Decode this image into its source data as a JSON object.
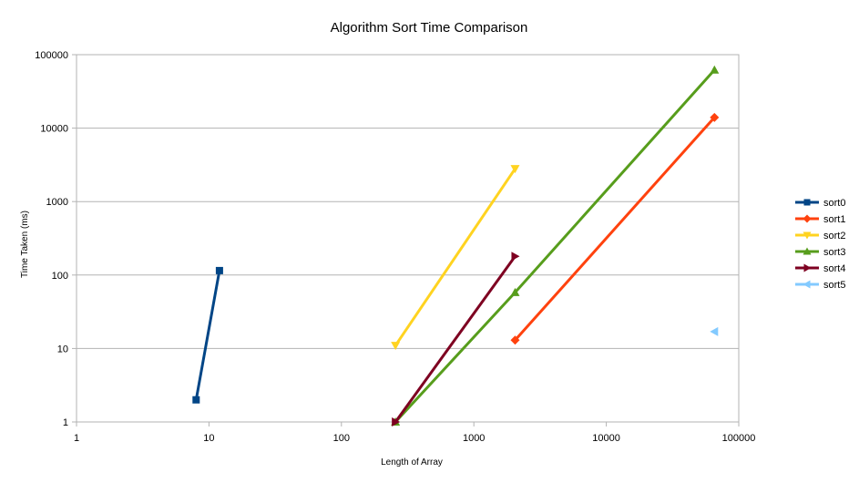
{
  "chart_data": {
    "type": "line",
    "title": "Algorithm Sort Time Comparison",
    "xlabel": "Length of Array",
    "ylabel": "Time Taken (ms)",
    "xscale": "log",
    "yscale": "log",
    "xlim": [
      1,
      100000
    ],
    "ylim": [
      1,
      100000
    ],
    "xticks": [
      "1",
      "10",
      "100",
      "1000",
      "10000",
      "100000"
    ],
    "yticks": [
      "1",
      "10",
      "100",
      "1000",
      "10000",
      "100000"
    ],
    "grid": "horizontal",
    "legend_position": "right",
    "series": [
      {
        "name": "sort0",
        "color": "#004586",
        "marker": "square",
        "points": [
          [
            8,
            2
          ],
          [
            12,
            115
          ]
        ]
      },
      {
        "name": "sort1",
        "color": "#ff420e",
        "marker": "diamond",
        "points": [
          [
            2048,
            13
          ],
          [
            65536,
            14000
          ]
        ]
      },
      {
        "name": "sort2",
        "color": "#ffd320",
        "marker": "triangle-down",
        "points": [
          [
            256,
            11
          ],
          [
            2048,
            2800
          ]
        ]
      },
      {
        "name": "sort3",
        "color": "#579d1c",
        "marker": "triangle-up",
        "points": [
          [
            256,
            1
          ],
          [
            2048,
            58
          ],
          [
            65536,
            62000
          ]
        ]
      },
      {
        "name": "sort4",
        "color": "#7e0021",
        "marker": "triangle-right",
        "points": [
          [
            256,
            1
          ],
          [
            2048,
            180
          ]
        ]
      },
      {
        "name": "sort5",
        "color": "#83caff",
        "marker": "triangle-left",
        "points": [
          [
            65536,
            17
          ]
        ]
      }
    ]
  }
}
